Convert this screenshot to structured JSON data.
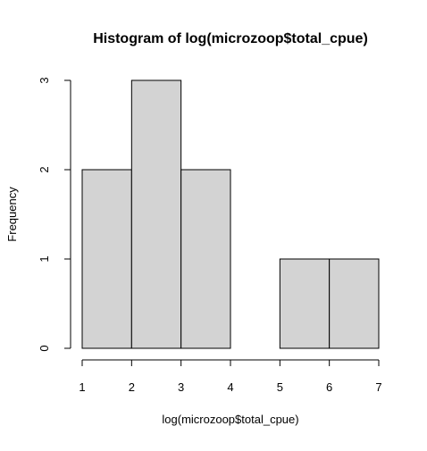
{
  "chart_data": {
    "type": "histogram",
    "title": "Histogram of log(microzoop$total_cpue)",
    "xlabel": "log(microzoop$total_cpue)",
    "ylabel": "Frequency",
    "bins": [
      {
        "from": 1,
        "to": 2,
        "count": 2
      },
      {
        "from": 2,
        "to": 3,
        "count": 3
      },
      {
        "from": 3,
        "to": 4,
        "count": 2
      },
      {
        "from": 4,
        "to": 5,
        "count": 0
      },
      {
        "from": 5,
        "to": 6,
        "count": 1
      },
      {
        "from": 6,
        "to": 7,
        "count": 1
      }
    ],
    "xlim": [
      1,
      7
    ],
    "ylim": [
      0,
      3
    ],
    "x_ticks": [
      "1",
      "2",
      "3",
      "4",
      "5",
      "6",
      "7"
    ],
    "y_ticks": [
      "0",
      "1",
      "2",
      "3"
    ],
    "bar_fill": "#d3d3d3",
    "bar_stroke": "#000000",
    "grid": false,
    "legend": "none"
  }
}
